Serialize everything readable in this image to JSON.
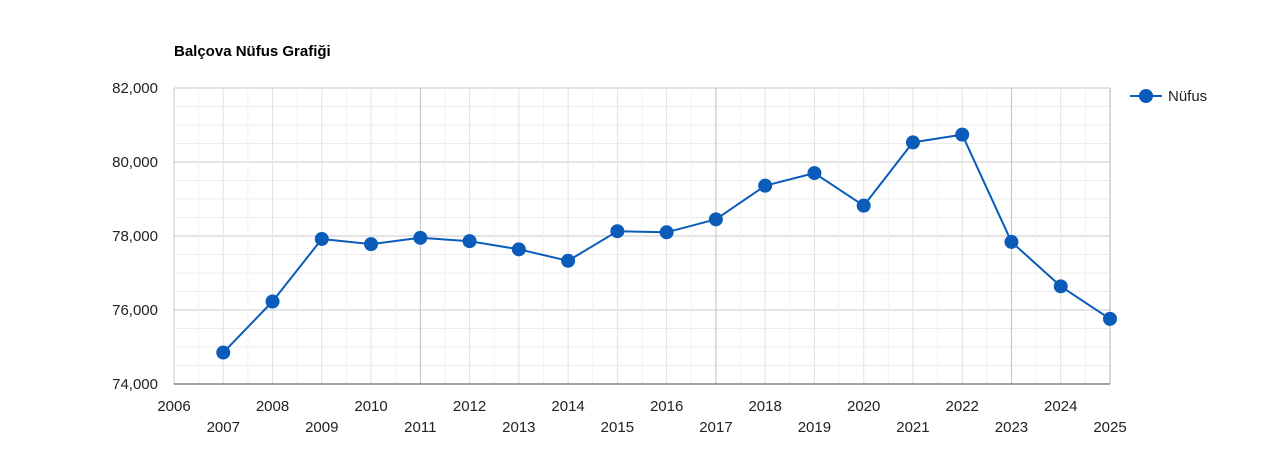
{
  "chart_data": {
    "type": "line",
    "title": "Balçova Nüfus Grafiği",
    "xlabel": "",
    "ylabel": "",
    "xlim": [
      2006,
      2025
    ],
    "ylim": [
      74000,
      82000
    ],
    "x_ticks_upper": [
      "2006",
      "2008",
      "2010",
      "2012",
      "2014",
      "2016",
      "2018",
      "2020",
      "2022",
      "2024"
    ],
    "x_ticks_lower": [
      "2007",
      "2009",
      "2011",
      "2013",
      "2015",
      "2017",
      "2019",
      "2021",
      "2023",
      "2025"
    ],
    "y_ticks": [
      "74,000",
      "76,000",
      "78,000",
      "80,000",
      "82,000"
    ],
    "grid": true,
    "legend_position": "right",
    "series": [
      {
        "name": "Nüfus",
        "color": "#0a5cb8",
        "x": [
          2007,
          2008,
          2009,
          2010,
          2011,
          2012,
          2013,
          2014,
          2015,
          2016,
          2017,
          2018,
          2019,
          2020,
          2021,
          2022,
          2023,
          2024,
          2025
        ],
        "values": [
          74850,
          76230,
          77920,
          77780,
          77950,
          77860,
          77640,
          77330,
          78130,
          78100,
          78450,
          79360,
          79700,
          78820,
          80530,
          80740,
          77840,
          76640,
          75760
        ]
      }
    ]
  }
}
